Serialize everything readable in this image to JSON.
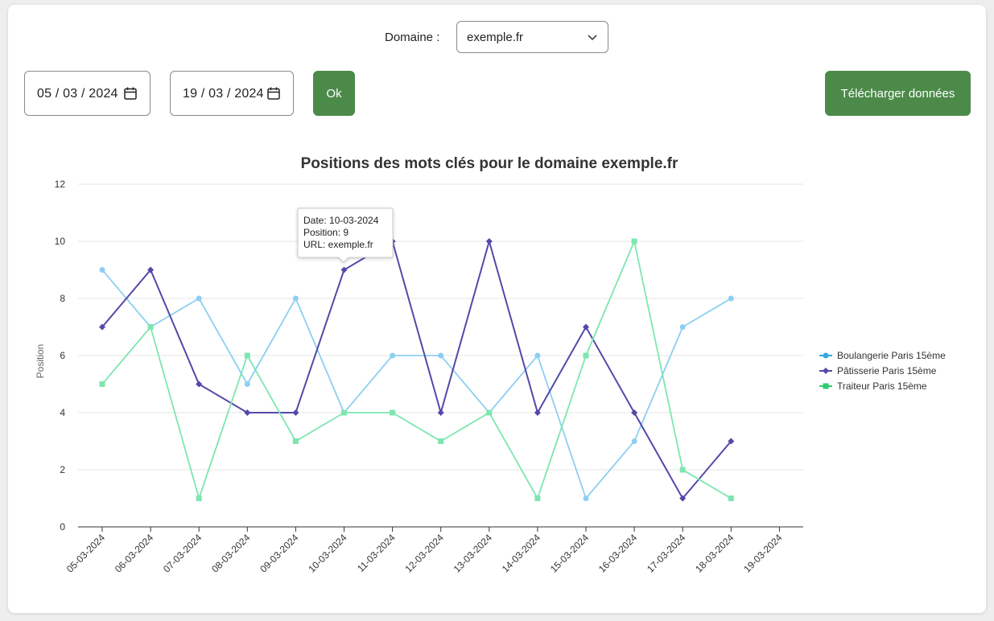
{
  "header": {
    "domain_label": "Domaine :",
    "domain_value": "exemple.fr"
  },
  "filters": {
    "start_date": "05 / 03 / 2024",
    "end_date": "19 / 03 / 2024",
    "ok_label": "Ok",
    "download_label": "Télécharger données"
  },
  "tooltip": {
    "date": "Date: 10-03-2024",
    "position": "Position: 9",
    "url": "URL: exemple.fr"
  },
  "chart_data": {
    "type": "line",
    "title": "Positions des mots clés pour le domaine exemple.fr",
    "ylabel": "Position",
    "xlabel": "",
    "ylim": [
      0,
      12
    ],
    "yticks": [
      0,
      2,
      4,
      6,
      8,
      10,
      12
    ],
    "grid": true,
    "legend_position": "right",
    "categories": [
      "05-03-2024",
      "06-03-2024",
      "07-03-2024",
      "08-03-2024",
      "09-03-2024",
      "10-03-2024",
      "11-03-2024",
      "12-03-2024",
      "13-03-2024",
      "14-03-2024",
      "15-03-2024",
      "16-03-2024",
      "17-03-2024",
      "18-03-2024",
      "19-03-2024"
    ],
    "series": [
      {
        "name": "Boulangerie Paris 15ème",
        "color": "#8dcff2",
        "marker": "circle",
        "values": [
          9,
          7,
          8,
          5,
          8,
          4,
          6,
          6,
          4,
          6,
          1,
          3,
          7,
          8,
          null
        ]
      },
      {
        "name": "Pâtisserie Paris 15ème",
        "color": "#5249a8",
        "marker": "diamond",
        "values": [
          7,
          9,
          5,
          4,
          4,
          9,
          10,
          4,
          10,
          4,
          7,
          4,
          1,
          3,
          null
        ]
      },
      {
        "name": "Traiteur Paris 15ème",
        "color": "#7de6b0",
        "marker": "square",
        "values": [
          5,
          7,
          1,
          6,
          3,
          4,
          4,
          3,
          4,
          1,
          6,
          10,
          2,
          1,
          null
        ]
      }
    ],
    "legend_marker_colors": [
      "#33a8e6",
      "#5249a8",
      "#2ecc71"
    ]
  }
}
